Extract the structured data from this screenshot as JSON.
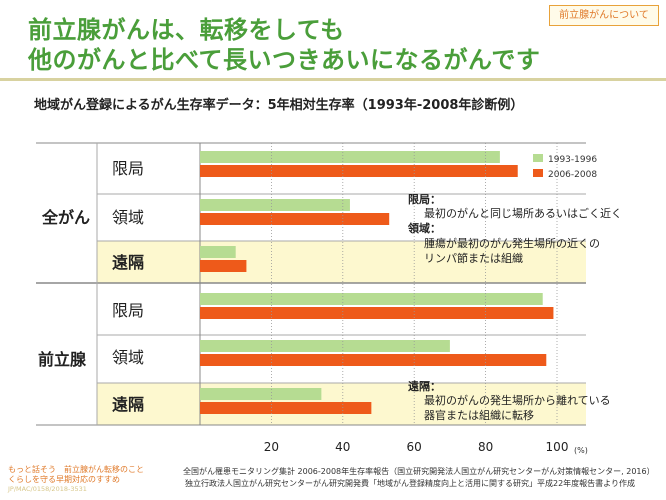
{
  "header": {
    "title_line1": "前立腺がんは、転移をしても",
    "title_line2": "他のがんと比べて長いつきあいになるがんです",
    "tag": "前立腺がんについて"
  },
  "subtitle": "地域がん登録によるがん生存率データ：5年相対生存率（1993年-2008年診断例）",
  "groups": [
    {
      "label": "全がん",
      "categories": [
        "限局",
        "領域",
        "遠隔"
      ]
    },
    {
      "label": "前立腺",
      "categories": [
        "限局",
        "領域",
        "遠隔"
      ]
    }
  ],
  "annotations": {
    "block1": {
      "heading1": "限局：",
      "text1": "最初のがんと同じ場所あるいはごく近く",
      "heading2": "領域：",
      "text2a": "腫瘍が最初のがん発生場所の近くの",
      "text2b": "リンパ節または組織"
    },
    "block2": {
      "heading": "遠隔：",
      "text_a": "最初のがんの発生場所から離れている",
      "text_b": "器官または組織に転移"
    }
  },
  "footnotes": {
    "line1": "全国がん罹患モニタリング集計 2006-2008年生存率報告（国立研究開発法人国立がん研究センターがん対策情報センター, 2016）",
    "line2": "独立行政法人国立がん研究センターがん研究開発費「地域がん登録精度向上と活用に関する研究」平成22年度報告書より作成"
  },
  "brand": {
    "line1": "もっと話そう　前立腺がん転移のこと",
    "line2": "くらしを守る早期対応のすすめ",
    "line3": "JP/MAC/0158/2018-3531"
  },
  "colors": {
    "series_1993": "#b6dc92",
    "series_2006": "#ee5a1a",
    "highlight": "#fdf8cf",
    "title": "#4a9e3a",
    "accent": "#e07a2a"
  },
  "chart_data": {
    "type": "bar",
    "orientation": "horizontal",
    "unit": "(%)",
    "xlim": [
      0,
      100
    ],
    "xticks": [
      20,
      40,
      60,
      80,
      100
    ],
    "legend_position": "top-right",
    "categories": [
      "全がん 限局",
      "全がん 領域",
      "全がん 遠隔",
      "前立腺 限局",
      "前立腺 領域",
      "前立腺 遠隔"
    ],
    "series": [
      {
        "name": "1993-1996",
        "color": "#b6dc92",
        "values": [
          84,
          42,
          10,
          96,
          70,
          34
        ]
      },
      {
        "name": "2006-2008",
        "color": "#ee5a1a",
        "values": [
          89,
          53,
          13,
          99,
          97,
          48
        ]
      }
    ]
  }
}
